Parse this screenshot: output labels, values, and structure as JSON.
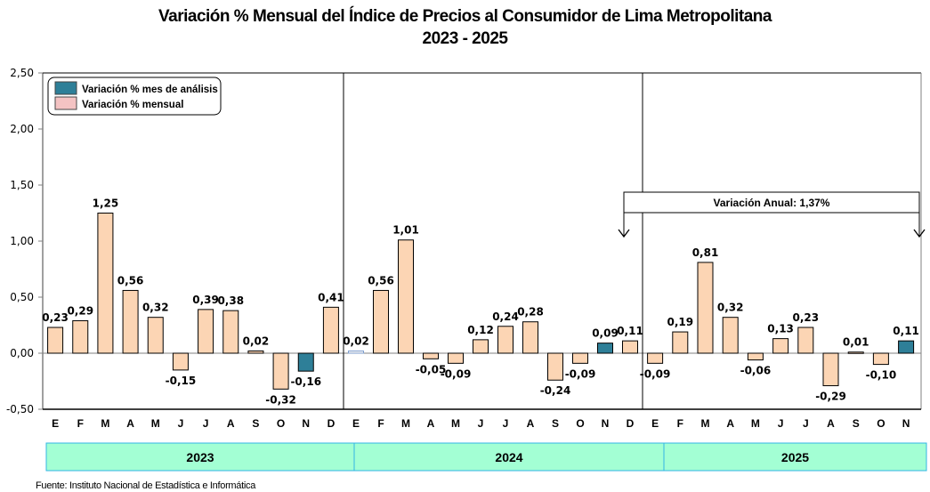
{
  "chart_data": {
    "type": "bar",
    "title": "Variación % Mensual del Índice de Precios al Consumidor de Lima Metropolitana",
    "subtitle": "2023 - 2025",
    "xlabel": "",
    "ylabel": "",
    "ylim": [
      -0.5,
      2.5
    ],
    "yticks": [
      2.5,
      2.0,
      1.5,
      1.0,
      0.5,
      0.0,
      -0.5
    ],
    "ytick_labels": [
      "2,50",
      "2,00",
      "1,50",
      "1,00",
      "0,50",
      "0,00",
      "-0,50"
    ],
    "grid": false,
    "legend_position": "top-left",
    "legend": [
      {
        "label": "Variación % mes de análisis",
        "color": "#2e7f98"
      },
      {
        "label": "Variación % mensual",
        "color": "#f4c3c3"
      }
    ],
    "colors": {
      "mensual": "#fcd5b4",
      "analisis": "#2e7f98",
      "bar_border": "#000000",
      "year_band": "#a3ffd4",
      "year_band_border": "#33b5e5"
    },
    "years": [
      {
        "year": "2023",
        "months": [
          "E",
          "F",
          "M",
          "A",
          "M",
          "J",
          "J",
          "A",
          "S",
          "O",
          "N",
          "D"
        ],
        "values": [
          0.23,
          0.29,
          1.25,
          0.56,
          0.32,
          -0.15,
          0.39,
          0.38,
          0.02,
          -0.32,
          -0.16,
          0.41
        ],
        "labels": [
          "0,23",
          "0,29",
          "1,25",
          "0,56",
          "0,32",
          "-0,15",
          "0,39",
          "0,38",
          "0,02",
          "-0,32",
          "-0,16",
          "0,41"
        ],
        "highlight": [
          10
        ]
      },
      {
        "year": "2024",
        "months": [
          "E",
          "F",
          "M",
          "A",
          "M",
          "J",
          "J",
          "A",
          "S",
          "O",
          "N",
          "D"
        ],
        "values": [
          0.02,
          0.56,
          1.01,
          -0.05,
          -0.09,
          0.12,
          0.24,
          0.28,
          -0.24,
          -0.09,
          0.09,
          0.11
        ],
        "labels": [
          "0,02",
          "0,56",
          "1,01",
          "-0,05",
          "-0,09",
          "0,12",
          "0,24",
          "0,28",
          "-0,24",
          "-0,09",
          "0,09",
          "0,11"
        ],
        "highlight": [
          10
        ]
      },
      {
        "year": "2025",
        "months": [
          "E",
          "F",
          "M",
          "A",
          "M",
          "J",
          "J",
          "A",
          "S",
          "O",
          "N"
        ],
        "values": [
          -0.09,
          0.19,
          0.81,
          0.32,
          -0.06,
          0.13,
          0.23,
          -0.29,
          0.01,
          -0.1,
          0.11
        ],
        "labels": [
          "-0,09",
          "0,19",
          "0,81",
          "0,32",
          "-0,06",
          "0,13",
          "0,23",
          "-0,29",
          "0,01",
          "-0,10",
          "0,11"
        ],
        "highlight": [
          10
        ]
      }
    ],
    "annotation": "Variación Anual:  1,37%"
  },
  "source": "Fuente: Instituto  Nacional de Estadística  e Informática"
}
